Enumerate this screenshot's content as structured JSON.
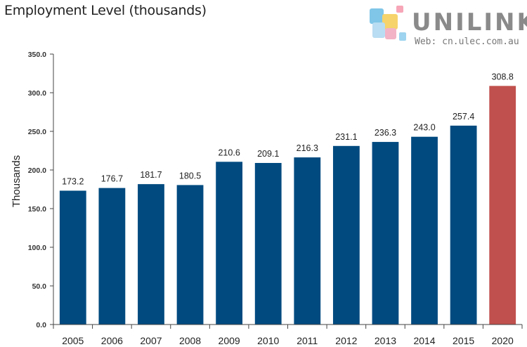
{
  "chart_data": {
    "type": "bar",
    "title": "Employment Level (thousands)",
    "ylabel": "Thousands",
    "xlabel": "",
    "categories": [
      "2005",
      "2006",
      "2007",
      "2008",
      "2009",
      "2010",
      "2011",
      "2012",
      "2013",
      "2014",
      "2015",
      "2020"
    ],
    "values": [
      173.2,
      176.7,
      181.7,
      180.5,
      210.6,
      209.1,
      216.3,
      231.1,
      236.3,
      243.0,
      257.4,
      308.8
    ],
    "data_labels": [
      "173.2",
      "176.7",
      "181.7",
      "180.5",
      "210.6",
      "209.1",
      "216.3",
      "231.1",
      "236.3",
      "243.0",
      "257.4",
      "308.8"
    ],
    "ylim": [
      0,
      350
    ],
    "yticks": [
      "0.0",
      "50.0",
      "100.0",
      "150.0",
      "200.0",
      "250.0",
      "300.0",
      "350.0"
    ],
    "grid": false,
    "colors": {
      "bar": "#004A80",
      "highlight": "#C0504D",
      "highlight_category": "2020"
    }
  },
  "logo": {
    "name": "UNILINK",
    "web": "Web: cn.ulec.com.au"
  }
}
